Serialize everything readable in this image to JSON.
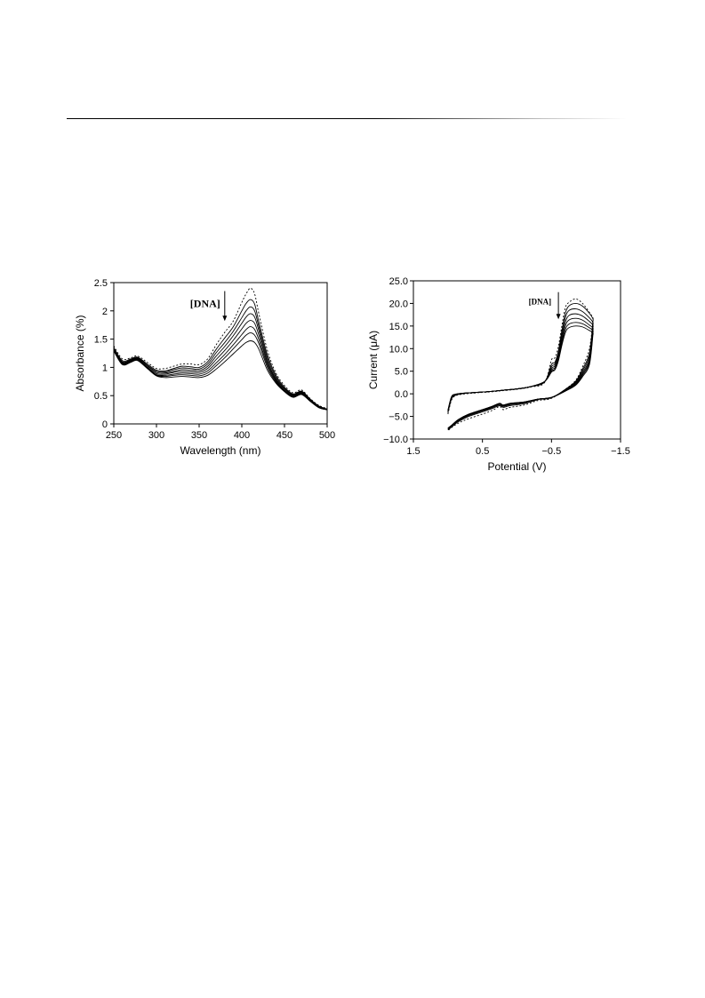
{
  "chart_data": [
    {
      "type": "line",
      "xlabel": "Wavelength (nm)",
      "ylabel": "Absorbance (%)",
      "xlim": [
        250,
        500
      ],
      "ylim": [
        0,
        2.5
      ],
      "xticks": [
        "250",
        "300",
        "350",
        "400",
        "450",
        "500"
      ],
      "yticks": [
        "0",
        "0.5",
        "1",
        "1.5",
        "2",
        "2.5"
      ],
      "annotation": "[DNA]",
      "arrow": {
        "x": 380,
        "y_from": 2.35,
        "y_to": 1.82
      },
      "x": [
        250,
        260,
        270,
        278,
        290,
        300,
        310,
        320,
        330,
        340,
        350,
        360,
        370,
        380,
        390,
        400,
        405,
        410,
        415,
        420,
        430,
        440,
        450,
        460,
        470,
        480,
        490,
        500
      ],
      "series": [
        {
          "style": "dotted",
          "values": [
            1.38,
            1.15,
            1.17,
            1.2,
            1.08,
            0.98,
            0.98,
            1.02,
            1.06,
            1.06,
            1.05,
            1.15,
            1.4,
            1.62,
            1.82,
            2.15,
            2.3,
            2.4,
            2.3,
            1.95,
            1.3,
            0.9,
            0.68,
            0.55,
            0.6,
            0.45,
            0.33,
            0.27
          ]
        },
        {
          "style": "solid",
          "values": [
            1.35,
            1.12,
            1.15,
            1.18,
            1.05,
            0.95,
            0.94,
            0.98,
            1.02,
            1.01,
            1.0,
            1.1,
            1.32,
            1.52,
            1.72,
            2.0,
            2.13,
            2.2,
            2.12,
            1.8,
            1.22,
            0.86,
            0.65,
            0.53,
            0.58,
            0.44,
            0.32,
            0.26
          ]
        },
        {
          "style": "solid",
          "values": [
            1.34,
            1.1,
            1.14,
            1.17,
            1.03,
            0.93,
            0.92,
            0.96,
            0.99,
            0.98,
            0.97,
            1.06,
            1.26,
            1.44,
            1.64,
            1.88,
            2.0,
            2.07,
            2.0,
            1.72,
            1.17,
            0.83,
            0.63,
            0.52,
            0.57,
            0.43,
            0.31,
            0.26
          ]
        },
        {
          "style": "solid",
          "values": [
            1.33,
            1.09,
            1.13,
            1.16,
            1.02,
            0.91,
            0.9,
            0.93,
            0.96,
            0.95,
            0.94,
            1.02,
            1.2,
            1.37,
            1.56,
            1.78,
            1.89,
            1.95,
            1.89,
            1.65,
            1.12,
            0.8,
            0.62,
            0.51,
            0.56,
            0.42,
            0.31,
            0.26
          ]
        },
        {
          "style": "solid",
          "values": [
            1.32,
            1.08,
            1.12,
            1.15,
            1.0,
            0.89,
            0.88,
            0.91,
            0.93,
            0.92,
            0.91,
            0.98,
            1.14,
            1.3,
            1.48,
            1.68,
            1.78,
            1.83,
            1.78,
            1.57,
            1.08,
            0.78,
            0.6,
            0.5,
            0.55,
            0.42,
            0.3,
            0.25
          ]
        },
        {
          "style": "solid",
          "values": [
            1.31,
            1.07,
            1.11,
            1.14,
            0.99,
            0.87,
            0.86,
            0.88,
            0.9,
            0.89,
            0.88,
            0.94,
            1.08,
            1.23,
            1.4,
            1.58,
            1.67,
            1.72,
            1.67,
            1.49,
            1.04,
            0.76,
            0.59,
            0.49,
            0.54,
            0.41,
            0.3,
            0.25
          ]
        },
        {
          "style": "solid",
          "values": [
            1.3,
            1.06,
            1.1,
            1.13,
            0.98,
            0.86,
            0.84,
            0.86,
            0.87,
            0.86,
            0.85,
            0.9,
            1.03,
            1.17,
            1.33,
            1.49,
            1.57,
            1.61,
            1.57,
            1.42,
            1.0,
            0.74,
            0.58,
            0.48,
            0.53,
            0.41,
            0.29,
            0.25
          ]
        },
        {
          "style": "solid",
          "values": [
            1.29,
            1.05,
            1.09,
            1.12,
            0.97,
            0.85,
            0.82,
            0.83,
            0.84,
            0.83,
            0.82,
            0.86,
            0.97,
            1.1,
            1.24,
            1.38,
            1.44,
            1.47,
            1.44,
            1.32,
            0.95,
            0.72,
            0.57,
            0.47,
            0.52,
            0.4,
            0.29,
            0.25
          ]
        }
      ]
    },
    {
      "type": "line",
      "xlabel": "Potential (V)",
      "ylabel": "Current (μA)",
      "xlim": [
        1.5,
        -1.5
      ],
      "ylim": [
        -10,
        25
      ],
      "xticks": [
        "1.5",
        "0.5",
        "−0.5",
        "−1.5"
      ],
      "yticks": [
        "−10.0",
        "−5.0",
        "0.0",
        "5.0",
        "10.0",
        "15.0",
        "20.0",
        "25.0"
      ],
      "annotation": "[DNA]",
      "arrow": {
        "x": -0.6,
        "y_from": 22.5,
        "y_to": 16.5
      },
      "series": [
        {
          "style": "dotted",
          "forward_x": [
            1.0,
            0.95,
            0.9,
            0.8,
            0.6,
            0.4,
            0.2,
            0.0,
            -0.2,
            -0.4,
            -0.5,
            -0.55,
            -0.6,
            -0.65,
            -0.7,
            -0.75,
            -0.85,
            -0.95,
            -1.05,
            -1.1,
            -1.1
          ],
          "forward_y": [
            -4.5,
            -1.5,
            -0.5,
            -0.1,
            0.2,
            0.4,
            0.7,
            1.0,
            1.5,
            2.5,
            7.5,
            8.0,
            10.5,
            15.0,
            19.0,
            20.2,
            21.0,
            20.0,
            18.0,
            16.8,
            16.2
          ],
          "reverse_x": [
            -1.1,
            -1.05,
            -0.95,
            -0.85,
            -0.7,
            -0.5,
            -0.3,
            -0.1,
            0.1,
            0.2,
            0.25,
            0.35,
            0.5,
            0.7,
            0.85,
            0.95,
            1.0
          ],
          "reverse_y": [
            16.2,
            10.0,
            6.0,
            3.0,
            1.0,
            -1.0,
            -1.5,
            -2.5,
            -3.0,
            -3.5,
            -2.8,
            -3.6,
            -4.5,
            -5.5,
            -6.5,
            -7.5,
            -8.2
          ]
        },
        {
          "style": "solid",
          "forward_x": [
            1.0,
            0.95,
            0.9,
            0.8,
            0.6,
            0.4,
            0.2,
            0.0,
            -0.2,
            -0.4,
            -0.5,
            -0.55,
            -0.6,
            -0.65,
            -0.7,
            -0.75,
            -0.85,
            -0.95,
            -1.05,
            -1.1,
            -1.1
          ],
          "forward_y": [
            -4.2,
            -1.2,
            -0.4,
            0.0,
            0.3,
            0.5,
            0.8,
            1.1,
            1.6,
            2.6,
            6.5,
            7.0,
            9.5,
            14.0,
            17.8,
            19.4,
            20.0,
            19.4,
            17.8,
            16.6,
            16.0
          ],
          "reverse_x": [
            -1.1,
            -1.05,
            -0.95,
            -0.85,
            -0.7,
            -0.5,
            -0.3,
            -0.1,
            0.1,
            0.2,
            0.25,
            0.35,
            0.5,
            0.7,
            0.85,
            0.95,
            1.0
          ],
          "reverse_y": [
            16.0,
            9.0,
            5.5,
            2.8,
            1.0,
            -0.9,
            -1.3,
            -2.2,
            -2.6,
            -3.0,
            -2.6,
            -3.2,
            -4.0,
            -5.0,
            -6.2,
            -7.4,
            -8.0
          ]
        },
        {
          "style": "solid",
          "forward_x": [
            1.0,
            0.95,
            0.9,
            0.8,
            0.6,
            0.4,
            0.2,
            0.0,
            -0.2,
            -0.4,
            -0.5,
            -0.55,
            -0.6,
            -0.65,
            -0.7,
            -0.75,
            -0.85,
            -0.95,
            -1.05,
            -1.1,
            -1.1
          ],
          "forward_y": [
            -4.0,
            -1.0,
            -0.3,
            0.1,
            0.3,
            0.5,
            0.8,
            1.1,
            1.6,
            2.7,
            6.0,
            6.6,
            9.0,
            13.2,
            16.8,
            18.4,
            18.8,
            18.2,
            16.8,
            15.8,
            15.2
          ],
          "reverse_x": [
            -1.1,
            -1.05,
            -0.95,
            -0.85,
            -0.7,
            -0.5,
            -0.3,
            -0.1,
            0.1,
            0.2,
            0.25,
            0.35,
            0.5,
            0.7,
            0.85,
            0.95,
            1.0
          ],
          "reverse_y": [
            15.2,
            8.4,
            5.1,
            2.6,
            0.9,
            -0.8,
            -1.2,
            -2.0,
            -2.4,
            -2.8,
            -2.4,
            -3.0,
            -3.8,
            -4.8,
            -6.0,
            -7.3,
            -7.9
          ]
        },
        {
          "style": "solid",
          "forward_x": [
            1.0,
            0.95,
            0.9,
            0.8,
            0.6,
            0.4,
            0.2,
            0.0,
            -0.2,
            -0.4,
            -0.5,
            -0.55,
            -0.6,
            -0.65,
            -0.7,
            -0.75,
            -0.85,
            -0.95,
            -1.05,
            -1.1,
            -1.1
          ],
          "forward_y": [
            -3.9,
            -0.9,
            -0.2,
            0.1,
            0.3,
            0.5,
            0.8,
            1.1,
            1.6,
            2.7,
            5.6,
            6.2,
            8.5,
            12.5,
            15.8,
            17.3,
            17.7,
            17.2,
            16.0,
            15.2,
            14.6
          ],
          "reverse_x": [
            -1.1,
            -1.05,
            -0.95,
            -0.85,
            -0.7,
            -0.5,
            -0.3,
            -0.1,
            0.1,
            0.2,
            0.25,
            0.35,
            0.5,
            0.7,
            0.85,
            0.95,
            1.0
          ],
          "reverse_y": [
            14.6,
            7.8,
            4.7,
            2.4,
            0.8,
            -0.8,
            -1.2,
            -1.9,
            -2.3,
            -2.7,
            -2.3,
            -2.9,
            -3.7,
            -4.7,
            -5.9,
            -7.2,
            -7.8
          ]
        },
        {
          "style": "solid",
          "forward_x": [
            1.0,
            0.95,
            0.9,
            0.8,
            0.6,
            0.4,
            0.2,
            0.0,
            -0.2,
            -0.4,
            -0.5,
            -0.55,
            -0.6,
            -0.65,
            -0.7,
            -0.75,
            -0.85,
            -0.95,
            -1.05,
            -1.1,
            -1.1
          ],
          "forward_y": [
            -3.8,
            -0.8,
            -0.2,
            0.1,
            0.3,
            0.5,
            0.8,
            1.1,
            1.6,
            2.7,
            5.3,
            5.8,
            8.0,
            11.8,
            15.0,
            16.3,
            16.7,
            16.3,
            15.2,
            14.6,
            14.0
          ],
          "reverse_x": [
            -1.1,
            -1.05,
            -0.95,
            -0.85,
            -0.7,
            -0.5,
            -0.3,
            -0.1,
            0.1,
            0.2,
            0.25,
            0.35,
            0.5,
            0.7,
            0.85,
            0.95,
            1.0
          ],
          "reverse_y": [
            14.0,
            7.3,
            4.4,
            2.2,
            0.7,
            -0.8,
            -1.2,
            -1.9,
            -2.2,
            -2.6,
            -2.2,
            -2.8,
            -3.6,
            -4.6,
            -5.8,
            -7.1,
            -7.7
          ]
        },
        {
          "style": "solid",
          "forward_x": [
            1.0,
            0.95,
            0.9,
            0.8,
            0.6,
            0.4,
            0.2,
            0.0,
            -0.2,
            -0.4,
            -0.5,
            -0.55,
            -0.6,
            -0.65,
            -0.7,
            -0.75,
            -0.85,
            -0.95,
            -1.05,
            -1.1,
            -1.1
          ],
          "forward_y": [
            -3.7,
            -0.8,
            -0.2,
            0.1,
            0.3,
            0.5,
            0.8,
            1.1,
            1.6,
            2.7,
            5.0,
            5.5,
            7.6,
            11.2,
            14.2,
            15.4,
            15.8,
            15.5,
            14.6,
            14.0,
            13.5
          ],
          "reverse_x": [
            -1.1,
            -1.05,
            -0.95,
            -0.85,
            -0.7,
            -0.5,
            -0.3,
            -0.1,
            0.1,
            0.2,
            0.25,
            0.35,
            0.5,
            0.7,
            0.85,
            0.95,
            1.0
          ],
          "reverse_y": [
            13.5,
            6.9,
            4.1,
            2.0,
            0.6,
            -0.8,
            -1.2,
            -1.8,
            -2.1,
            -2.5,
            -2.1,
            -2.7,
            -3.5,
            -4.5,
            -5.7,
            -7.0,
            -7.6
          ]
        },
        {
          "style": "solid",
          "forward_x": [
            1.0,
            0.95,
            0.9,
            0.8,
            0.6,
            0.4,
            0.2,
            0.0,
            -0.2,
            -0.4,
            -0.5,
            -0.55,
            -0.6,
            -0.65,
            -0.7,
            -0.75,
            -0.85,
            -0.95,
            -1.05,
            -1.1,
            -1.1
          ],
          "forward_y": [
            -3.6,
            -0.7,
            -0.1,
            0.1,
            0.3,
            0.5,
            0.8,
            1.1,
            1.6,
            2.7,
            4.8,
            5.3,
            7.3,
            10.7,
            13.5,
            14.6,
            15.0,
            14.8,
            14.0,
            13.5,
            13.0
          ],
          "reverse_x": [
            -1.1,
            -1.05,
            -0.95,
            -0.85,
            -0.7,
            -0.5,
            -0.3,
            -0.1,
            0.1,
            0.2,
            0.25,
            0.35,
            0.5,
            0.7,
            0.85,
            0.95,
            1.0
          ],
          "reverse_y": [
            13.0,
            6.5,
            3.8,
            1.9,
            0.6,
            -0.8,
            -1.2,
            -1.8,
            -2.1,
            -2.5,
            -2.1,
            -2.7,
            -3.5,
            -4.5,
            -5.7,
            -7.0,
            -7.6
          ]
        }
      ]
    }
  ]
}
